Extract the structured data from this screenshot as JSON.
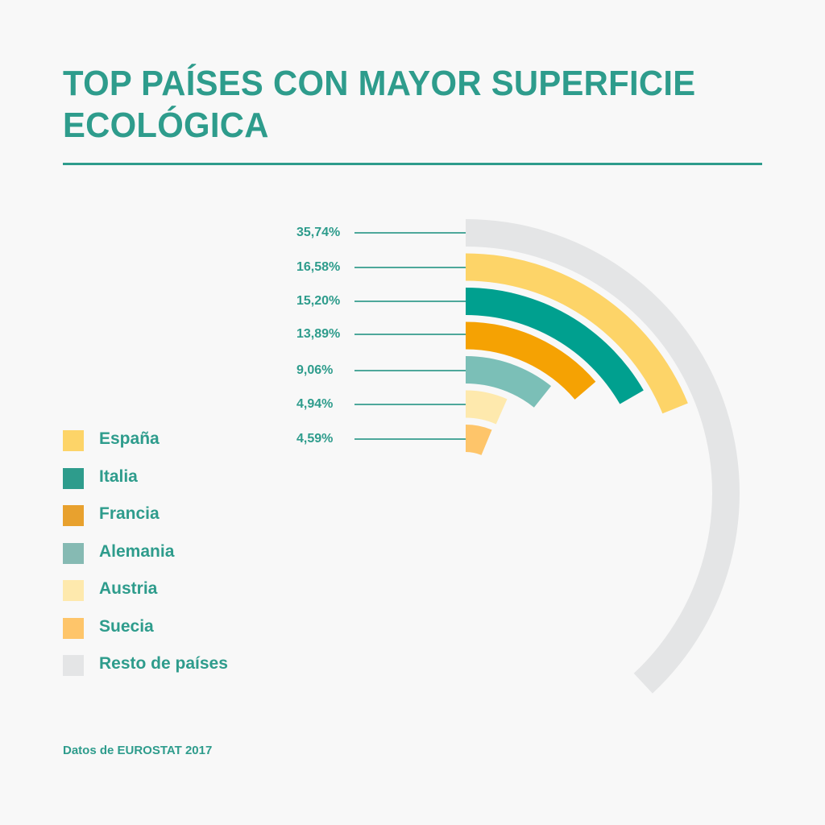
{
  "header": {
    "title": "TOP PAÍSES CON MAYOR SUPERFICIE ECOLÓGICA"
  },
  "footer": {
    "source": "Datos de EUROSTAT 2017"
  },
  "colors": {
    "accent": "#2e9c8c",
    "background": "#f8f8f8"
  },
  "chart_data": {
    "type": "radial-bar",
    "title": "TOP PAÍSES CON MAYOR SUPERFICIE ECOLÓGICA",
    "unit": "%",
    "legend_position": "left",
    "categories": [
      "Resto de países",
      "España",
      "Italia",
      "Francia",
      "Alemania",
      "Austria",
      "Suecia"
    ],
    "values": [
      35.74,
      16.58,
      15.2,
      13.89,
      9.06,
      4.94,
      4.59
    ],
    "labels": [
      "35,74%",
      "16,58%",
      "15,20%",
      "13,89%",
      "9,06%",
      "4,94%",
      "4,59%"
    ],
    "colors": [
      "#e4e5e6",
      "#fdd468",
      "#00a08f",
      "#f5a203",
      "#7bbfb7",
      "#fee9ad",
      "#fec56a"
    ],
    "arc_end_angles_deg": [
      137,
      68,
      60,
      49.4,
      38.6,
      23.8,
      22.5
    ],
    "source": "Datos de EUROSTAT 2017"
  },
  "legend": {
    "items": [
      {
        "label": "España",
        "color": "#fdd468"
      },
      {
        "label": "Italia",
        "color": "#2e9c8c"
      },
      {
        "label": "Francia",
        "color": "#e8a12e"
      },
      {
        "label": "Alemania",
        "color": "#86bab3"
      },
      {
        "label": "Austria",
        "color": "#fee9ad"
      },
      {
        "label": "Suecia",
        "color": "#fec56a"
      },
      {
        "label": "Resto de países",
        "color": "#e4e5e6"
      }
    ]
  }
}
